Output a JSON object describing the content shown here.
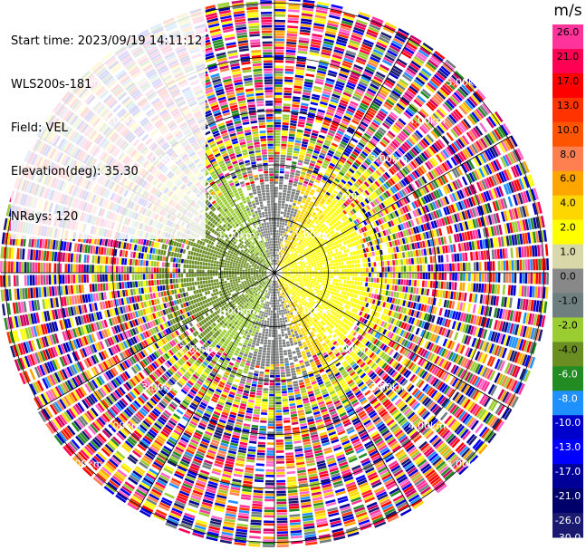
{
  "header": {
    "start_time": "Start time: 2023/09/19 14:11:12",
    "instrument": "WLS200s-181",
    "field": "Field: VEL",
    "elevation": "Elevation(deg): 35.30",
    "nrays": "NRays: 120"
  },
  "chart_data": {
    "type": "heatmap",
    "projection": "polar-ppi",
    "field": "VEL",
    "units": "m/s",
    "nrays": 120,
    "range_rings_km": [
      1.0,
      2.0,
      3.0,
      4.0,
      5.0
    ],
    "range_ring_labels": [
      "1.00km",
      "2.00km",
      "3.00km",
      "4.00km",
      "5.00km"
    ],
    "spokes_deg": [
      0,
      30,
      60,
      90,
      120,
      150,
      180,
      210,
      240,
      270,
      300,
      330
    ],
    "colorbar": {
      "title": "m/s",
      "tick_labels": [
        "26.0",
        "21.0",
        "17.0",
        "13.0",
        "10.0",
        "8.0",
        "6.0",
        "4.0",
        "2.0",
        "1.0",
        "0.0",
        "-1.0",
        "-2.0",
        "-4.0",
        "-6.0",
        "-8.0",
        "-10.0",
        "-13.0",
        "-17.0",
        "-21.0",
        "-26.0",
        "-30.0"
      ],
      "colors": [
        "#ff3399",
        "#ff0055",
        "#ff0000",
        "#ff3300",
        "#ff5500",
        "#ff7f50",
        "#ffa500",
        "#ffd700",
        "#ffff00",
        "#d8d8a8",
        "#888888",
        "#6f7f80",
        "#9acd32",
        "#6b8e23",
        "#228b22",
        "#1e90ff",
        "#0000cd",
        "#0000ff",
        "#000099",
        "#00006b",
        "#1a1a70"
      ]
    }
  }
}
